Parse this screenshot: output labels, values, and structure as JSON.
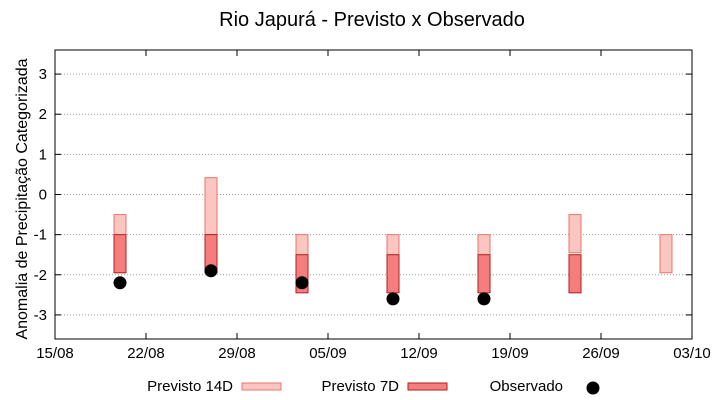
{
  "chart_data": {
    "type": "bar",
    "title": "Rio Japurá - Previsto x Observado",
    "xlabel": "",
    "ylabel": "Anomalia de Precipitação Categorizada",
    "x_ticks": [
      "15/08",
      "22/08",
      "29/08",
      "05/09",
      "12/09",
      "19/09",
      "26/09",
      "03/10"
    ],
    "x_range": [
      "15/08",
      "03/10"
    ],
    "ylim": [
      -3.6,
      3.6
    ],
    "y_ticks": [
      "3",
      "2",
      "1",
      "0",
      "-1",
      "-2",
      "-3"
    ],
    "grid": true,
    "legend_position": "bottom",
    "series": [
      {
        "name": "Previsto 14D",
        "kind": "floating-bar",
        "fill": "#fcc6c0",
        "stroke": "#e8776d",
        "points": [
          {
            "date": "20/08",
            "low": -1.95,
            "high": -0.5
          },
          {
            "date": "27/08",
            "low": -1.0,
            "high": 0.42
          },
          {
            "date": "03/09",
            "low": -2.0,
            "high": -1.0
          },
          {
            "date": "10/09",
            "low": -2.0,
            "high": -1.0
          },
          {
            "date": "17/09",
            "low": -2.0,
            "high": -1.0
          },
          {
            "date": "24/09",
            "low": -1.45,
            "high": -0.5
          },
          {
            "date": "01/10",
            "low": -1.95,
            "high": -1.0
          }
        ]
      },
      {
        "name": "Previsto 7D",
        "kind": "floating-bar",
        "fill": "#f47e7e",
        "stroke": "#b21e1e",
        "points": [
          {
            "date": "20/08",
            "low": -1.95,
            "high": -1.0
          },
          {
            "date": "27/08",
            "low": -1.95,
            "high": -1.0
          },
          {
            "date": "03/09",
            "low": -2.45,
            "high": -1.5
          },
          {
            "date": "10/09",
            "low": -2.45,
            "high": -1.5
          },
          {
            "date": "17/09",
            "low": -2.45,
            "high": -1.5
          },
          {
            "date": "24/09",
            "low": -2.45,
            "high": -1.5
          }
        ]
      },
      {
        "name": "Observado",
        "kind": "point",
        "color": "#000000",
        "points": [
          {
            "date": "20/08",
            "value": -2.2
          },
          {
            "date": "27/08",
            "value": -1.9
          },
          {
            "date": "03/09",
            "value": -2.2
          },
          {
            "date": "10/09",
            "value": -2.6
          },
          {
            "date": "17/09",
            "value": -2.6
          }
        ]
      }
    ]
  }
}
